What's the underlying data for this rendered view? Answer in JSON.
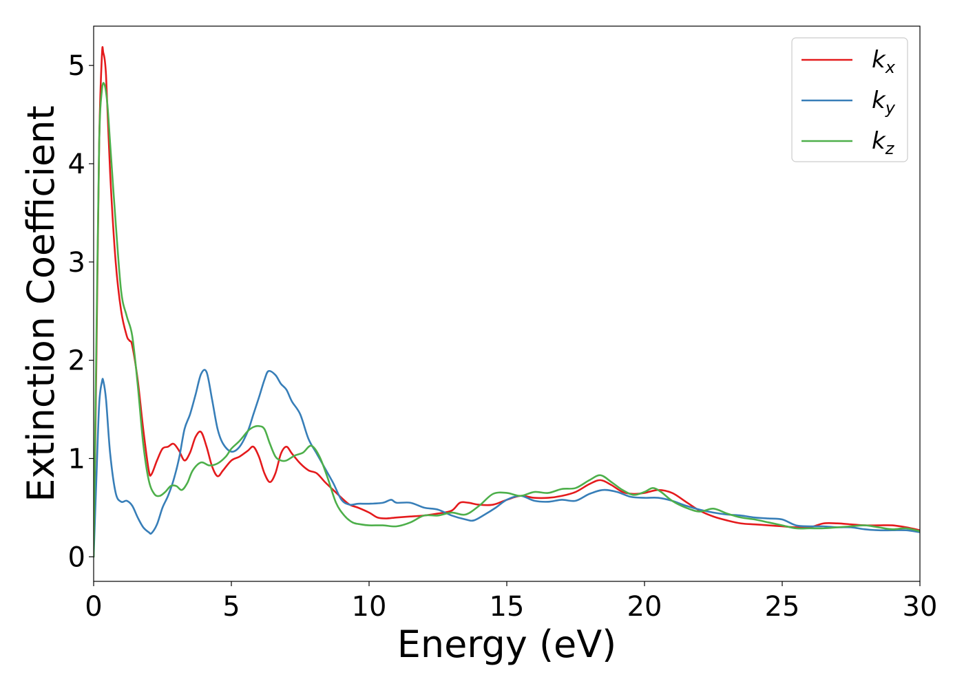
{
  "chart_data": {
    "type": "line",
    "title": "",
    "xlabel": "Energy (eV)",
    "ylabel": "Extinction Coefficient",
    "xlim": [
      0,
      30
    ],
    "ylim": [
      -0.25,
      5.4
    ],
    "xticks": [
      0,
      5,
      10,
      15,
      20,
      25,
      30
    ],
    "yticks": [
      0,
      1,
      2,
      3,
      4,
      5
    ],
    "grid": false,
    "legend_position": "top-right",
    "series": [
      {
        "name": "k",
        "name_subscript": "x",
        "color": "#e41a1c",
        "x": [
          0,
          0.1,
          0.2,
          0.3,
          0.35,
          0.45,
          0.6,
          0.8,
          1.0,
          1.2,
          1.3,
          1.4,
          1.6,
          1.8,
          2.0,
          2.1,
          2.3,
          2.5,
          2.7,
          2.9,
          3.1,
          3.3,
          3.5,
          3.7,
          3.9,
          4.1,
          4.3,
          4.5,
          4.7,
          5.0,
          5.3,
          5.6,
          5.8,
          6.0,
          6.2,
          6.4,
          6.6,
          6.8,
          7.0,
          7.2,
          7.5,
          7.8,
          8.1,
          8.4,
          8.7,
          9.0,
          9.3,
          9.6,
          10.0,
          10.3,
          10.6,
          11.0,
          11.5,
          12.0,
          12.5,
          13.0,
          13.3,
          13.6,
          14.0,
          14.5,
          15.0,
          15.5,
          16.0,
          16.5,
          17.0,
          17.5,
          18.0,
          18.4,
          18.8,
          19.2,
          19.6,
          20.0,
          20.5,
          21.0,
          21.5,
          22.0,
          22.5,
          23.0,
          23.5,
          24.0,
          24.5,
          25.0,
          25.5,
          26.0,
          26.5,
          27.0,
          27.5,
          28.0,
          28.5,
          29.0,
          29.5,
          30.0
        ],
        "y": [
          0.0,
          2.0,
          4.2,
          5.1,
          5.13,
          4.9,
          3.9,
          3.0,
          2.5,
          2.25,
          2.2,
          2.15,
          1.8,
          1.3,
          0.88,
          0.84,
          0.98,
          1.1,
          1.12,
          1.15,
          1.08,
          0.98,
          1.06,
          1.22,
          1.27,
          1.12,
          0.92,
          0.82,
          0.88,
          0.98,
          1.02,
          1.08,
          1.12,
          1.02,
          0.85,
          0.76,
          0.85,
          1.05,
          1.12,
          1.05,
          0.95,
          0.88,
          0.85,
          0.76,
          0.68,
          0.6,
          0.53,
          0.5,
          0.45,
          0.4,
          0.39,
          0.4,
          0.41,
          0.42,
          0.44,
          0.47,
          0.55,
          0.55,
          0.53,
          0.53,
          0.58,
          0.62,
          0.6,
          0.6,
          0.62,
          0.66,
          0.74,
          0.78,
          0.73,
          0.66,
          0.64,
          0.65,
          0.68,
          0.65,
          0.56,
          0.47,
          0.41,
          0.37,
          0.34,
          0.33,
          0.32,
          0.31,
          0.3,
          0.3,
          0.34,
          0.34,
          0.33,
          0.32,
          0.32,
          0.32,
          0.3,
          0.27
        ]
      },
      {
        "name": "k",
        "name_subscript": "y",
        "color": "#377eb8",
        "x": [
          0,
          0.1,
          0.2,
          0.3,
          0.35,
          0.45,
          0.6,
          0.8,
          1.0,
          1.2,
          1.4,
          1.6,
          1.8,
          2.0,
          2.1,
          2.3,
          2.5,
          2.7,
          2.9,
          3.1,
          3.3,
          3.5,
          3.7,
          3.9,
          4.1,
          4.3,
          4.5,
          4.7,
          5.0,
          5.3,
          5.6,
          5.8,
          6.0,
          6.2,
          6.35,
          6.6,
          6.8,
          7.0,
          7.2,
          7.5,
          7.8,
          8.1,
          8.4,
          8.7,
          9.0,
          9.3,
          9.6,
          10.0,
          10.5,
          10.8,
          11.0,
          11.5,
          12.0,
          12.5,
          13.0,
          13.5,
          13.8,
          14.2,
          14.6,
          15.0,
          15.5,
          16.0,
          16.5,
          17.0,
          17.5,
          18.0,
          18.5,
          19.0,
          19.5,
          20.0,
          20.5,
          21.0,
          21.5,
          22.0,
          22.5,
          23.0,
          23.5,
          24.0,
          24.5,
          25.0,
          25.5,
          26.0,
          26.5,
          27.0,
          27.5,
          28.0,
          28.5,
          29.0,
          29.5,
          30.0
        ],
        "y": [
          0.0,
          0.8,
          1.55,
          1.78,
          1.79,
          1.6,
          1.05,
          0.65,
          0.56,
          0.57,
          0.52,
          0.4,
          0.3,
          0.25,
          0.24,
          0.33,
          0.5,
          0.62,
          0.78,
          1.0,
          1.3,
          1.45,
          1.65,
          1.86,
          1.88,
          1.6,
          1.3,
          1.15,
          1.07,
          1.12,
          1.28,
          1.45,
          1.62,
          1.8,
          1.89,
          1.85,
          1.76,
          1.7,
          1.58,
          1.45,
          1.2,
          1.05,
          0.9,
          0.75,
          0.58,
          0.53,
          0.54,
          0.54,
          0.55,
          0.58,
          0.55,
          0.55,
          0.5,
          0.48,
          0.42,
          0.38,
          0.37,
          0.43,
          0.5,
          0.58,
          0.62,
          0.57,
          0.56,
          0.58,
          0.57,
          0.64,
          0.68,
          0.66,
          0.61,
          0.6,
          0.6,
          0.57,
          0.52,
          0.48,
          0.45,
          0.43,
          0.42,
          0.4,
          0.39,
          0.38,
          0.32,
          0.31,
          0.31,
          0.3,
          0.3,
          0.28,
          0.27,
          0.27,
          0.27,
          0.25
        ]
      },
      {
        "name": "k",
        "name_subscript": "z",
        "color": "#4daf4a",
        "x": [
          0,
          0.1,
          0.2,
          0.3,
          0.4,
          0.5,
          0.6,
          0.8,
          1.0,
          1.2,
          1.4,
          1.6,
          1.8,
          2.0,
          2.2,
          2.4,
          2.6,
          2.8,
          3.0,
          3.2,
          3.4,
          3.6,
          3.9,
          4.2,
          4.5,
          4.8,
          5.0,
          5.3,
          5.6,
          5.8,
          6.0,
          6.2,
          6.4,
          6.6,
          6.8,
          7.0,
          7.3,
          7.6,
          7.9,
          8.2,
          8.5,
          8.8,
          9.1,
          9.4,
          9.7,
          10.0,
          10.5,
          11.0,
          11.5,
          12.0,
          12.5,
          13.0,
          13.5,
          14.0,
          14.5,
          15.0,
          15.5,
          16.0,
          16.5,
          17.0,
          17.5,
          18.0,
          18.4,
          18.8,
          19.2,
          19.6,
          20.0,
          20.3,
          20.6,
          21.0,
          21.5,
          22.0,
          22.5,
          23.0,
          23.5,
          24.0,
          24.5,
          25.0,
          25.5,
          26.0,
          26.5,
          27.0,
          27.5,
          28.0,
          28.5,
          29.0,
          29.5,
          30.0
        ],
        "y": [
          0.0,
          2.2,
          4.2,
          4.75,
          4.8,
          4.6,
          4.2,
          3.4,
          2.7,
          2.45,
          2.25,
          1.75,
          1.15,
          0.78,
          0.64,
          0.62,
          0.66,
          0.72,
          0.72,
          0.68,
          0.75,
          0.88,
          0.96,
          0.93,
          0.95,
          1.02,
          1.1,
          1.18,
          1.28,
          1.32,
          1.33,
          1.3,
          1.15,
          1.02,
          0.98,
          0.98,
          1.03,
          1.06,
          1.13,
          1.02,
          0.8,
          0.55,
          0.42,
          0.35,
          0.33,
          0.32,
          0.32,
          0.31,
          0.35,
          0.42,
          0.42,
          0.45,
          0.43,
          0.52,
          0.64,
          0.65,
          0.62,
          0.66,
          0.65,
          0.69,
          0.7,
          0.78,
          0.83,
          0.76,
          0.68,
          0.63,
          0.66,
          0.7,
          0.66,
          0.57,
          0.5,
          0.46,
          0.49,
          0.44,
          0.4,
          0.38,
          0.35,
          0.32,
          0.29,
          0.29,
          0.29,
          0.3,
          0.31,
          0.32,
          0.3,
          0.28,
          0.29,
          0.26
        ]
      }
    ]
  }
}
